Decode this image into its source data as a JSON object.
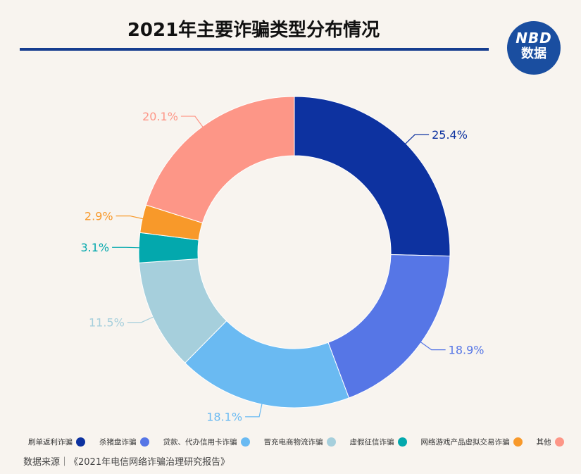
{
  "header": {
    "title": "2021年主要诈骗类型分布情况"
  },
  "logo": {
    "line1": "NBD",
    "line2": "数据"
  },
  "source": {
    "text": "数据来源｜《2021年电信网络诈骗治理研究报告》"
  },
  "chart_data": {
    "type": "pie",
    "subtype": "donut",
    "title": "2021年主要诈骗类型分布情况",
    "legend_position": "bottom",
    "slices": [
      {
        "name": "刷单返利诈骗",
        "value": 25.4,
        "label": "25.4%",
        "color": "#0d32a0"
      },
      {
        "name": "杀猪盘诈骗",
        "value": 18.9,
        "label": "18.9%",
        "color": "#5676e6"
      },
      {
        "name": "贷款、代办信用卡诈骗",
        "value": 18.1,
        "label": "18.1%",
        "color": "#6abaf2"
      },
      {
        "name": "冒充电商物流诈骗",
        "value": 11.5,
        "label": "11.5%",
        "color": "#a6cfdc"
      },
      {
        "name": "虚假征信诈骗",
        "value": 3.1,
        "label": "3.1%",
        "color": "#03a8ad"
      },
      {
        "name": "网络游戏产品虚拟交易诈骗",
        "value": 2.9,
        "label": "2.9%",
        "color": "#f8992a"
      },
      {
        "name": "其他",
        "value": 20.1,
        "label": "20.1%",
        "color": "#fd9687"
      }
    ]
  }
}
